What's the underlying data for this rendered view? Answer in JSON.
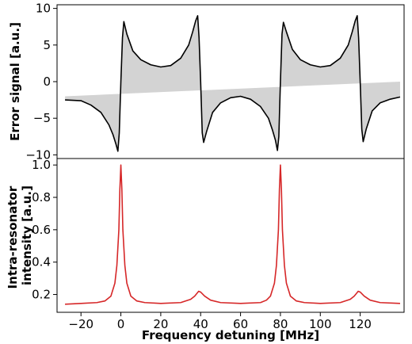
{
  "colors": {
    "error_line": "#000000",
    "error_fill": "#d3d3d3",
    "intensity_line": "#d62728"
  },
  "chart_data": [
    {
      "type": "line",
      "panel": "top",
      "xlabel": "",
      "ylabel": "Error signal [a.u.]",
      "xlim": [
        -32,
        142
      ],
      "ylim": [
        -10.5,
        10.5
      ],
      "yticks": [
        -10,
        -5,
        0,
        5,
        10
      ],
      "ytick_labels": [
        "−10",
        "−5",
        "0",
        "5",
        "10"
      ],
      "grid": false,
      "fill": "shaded area between the error signal and a reference line running from -2.0 at x=-28 to 0.0 at x=140",
      "series": [
        {
          "points": [
            [
              -28,
              -2.5
            ],
            [
              -20,
              -2.6
            ],
            [
              -15,
              -3.2
            ],
            [
              -10,
              -4.2
            ],
            [
              -6,
              -5.9
            ],
            [
              -4,
              -7.2
            ],
            [
              -2.5,
              -8.5
            ],
            [
              -1.5,
              -9.5
            ],
            [
              -0.8,
              -7.0
            ],
            [
              0,
              0
            ],
            [
              0.8,
              6.0
            ],
            [
              1.5,
              8.2
            ],
            [
              3,
              6.5
            ],
            [
              6,
              4.2
            ],
            [
              10,
              3.0
            ],
            [
              15,
              2.3
            ],
            [
              20,
              2.0
            ],
            [
              25,
              2.2
            ],
            [
              30,
              3.2
            ],
            [
              34,
              5.0
            ],
            [
              36,
              6.8
            ],
            [
              37.5,
              8.3
            ],
            [
              38.5,
              9.0
            ],
            [
              39.2,
              6.0
            ],
            [
              40,
              0
            ],
            [
              40.8,
              -7.0
            ],
            [
              41.5,
              -8.3
            ],
            [
              43,
              -6.8
            ],
            [
              46,
              -4.2
            ],
            [
              50,
              -2.9
            ],
            [
              55,
              -2.2
            ],
            [
              60,
              -2.0
            ],
            [
              65,
              -2.4
            ],
            [
              70,
              -3.4
            ],
            [
              74,
              -5.0
            ],
            [
              76,
              -6.6
            ],
            [
              77.5,
              -8.0
            ],
            [
              78.5,
              -9.4
            ],
            [
              79.2,
              -7.5
            ],
            [
              80,
              0
            ],
            [
              80.8,
              6.5
            ],
            [
              81.5,
              8.1
            ],
            [
              83,
              6.8
            ],
            [
              86,
              4.4
            ],
            [
              90,
              3.0
            ],
            [
              95,
              2.3
            ],
            [
              100,
              2.0
            ],
            [
              105,
              2.2
            ],
            [
              110,
              3.2
            ],
            [
              114,
              5.0
            ],
            [
              116,
              6.8
            ],
            [
              117.5,
              8.3
            ],
            [
              118.5,
              9.0
            ],
            [
              119.2,
              6.0
            ],
            [
              120,
              0
            ],
            [
              120.8,
              -6.5
            ],
            [
              121.5,
              -8.2
            ],
            [
              123,
              -6.5
            ],
            [
              126,
              -4.0
            ],
            [
              130,
              -2.9
            ],
            [
              135,
              -2.4
            ],
            [
              140,
              -2.1
            ]
          ]
        }
      ]
    },
    {
      "type": "line",
      "panel": "bottom",
      "xlabel": "Frequency detuning [MHz]",
      "ylabel": "Intra-resonator intensity [a.u.]",
      "ylabel_lines": [
        "Intra-resonator",
        "intensity [a.u.]"
      ],
      "xlim": [
        -32,
        142
      ],
      "ylim": [
        0.09,
        1.04
      ],
      "xticks": [
        -20,
        0,
        20,
        40,
        60,
        80,
        100,
        120
      ],
      "xtick_labels": [
        "−20",
        "0",
        "20",
        "40",
        "60",
        "80",
        "100",
        "120"
      ],
      "yticks": [
        0.2,
        0.4,
        0.6,
        0.8,
        1.0
      ],
      "ytick_labels": [
        "0.2",
        "0.4",
        "0.6",
        "0.8",
        "1.0"
      ],
      "grid": false,
      "series": [
        {
          "points": [
            [
              -28,
              0.14
            ],
            [
              -20,
              0.145
            ],
            [
              -12,
              0.15
            ],
            [
              -8,
              0.16
            ],
            [
              -5,
              0.19
            ],
            [
              -3,
              0.27
            ],
            [
              -2,
              0.38
            ],
            [
              -1,
              0.6
            ],
            [
              -0.5,
              0.85
            ],
            [
              0,
              1.0
            ],
            [
              0.5,
              0.85
            ],
            [
              1,
              0.6
            ],
            [
              2,
              0.38
            ],
            [
              3,
              0.27
            ],
            [
              5,
              0.19
            ],
            [
              8,
              0.16
            ],
            [
              12,
              0.15
            ],
            [
              20,
              0.145
            ],
            [
              30,
              0.15
            ],
            [
              35,
              0.17
            ],
            [
              37,
              0.19
            ],
            [
              39,
              0.22
            ],
            [
              40,
              0.215
            ],
            [
              42,
              0.19
            ],
            [
              45,
              0.165
            ],
            [
              50,
              0.15
            ],
            [
              60,
              0.145
            ],
            [
              70,
              0.15
            ],
            [
              73,
              0.165
            ],
            [
              75,
              0.19
            ],
            [
              77,
              0.27
            ],
            [
              78,
              0.38
            ],
            [
              79,
              0.6
            ],
            [
              79.5,
              0.85
            ],
            [
              80,
              1.0
            ],
            [
              80.5,
              0.85
            ],
            [
              81,
              0.6
            ],
            [
              82,
              0.38
            ],
            [
              83,
              0.27
            ],
            [
              85,
              0.19
            ],
            [
              88,
              0.16
            ],
            [
              92,
              0.15
            ],
            [
              100,
              0.145
            ],
            [
              110,
              0.15
            ],
            [
              115,
              0.17
            ],
            [
              117,
              0.19
            ],
            [
              119,
              0.22
            ],
            [
              120,
              0.215
            ],
            [
              122,
              0.19
            ],
            [
              125,
              0.165
            ],
            [
              130,
              0.15
            ],
            [
              140,
              0.145
            ]
          ]
        }
      ]
    }
  ]
}
